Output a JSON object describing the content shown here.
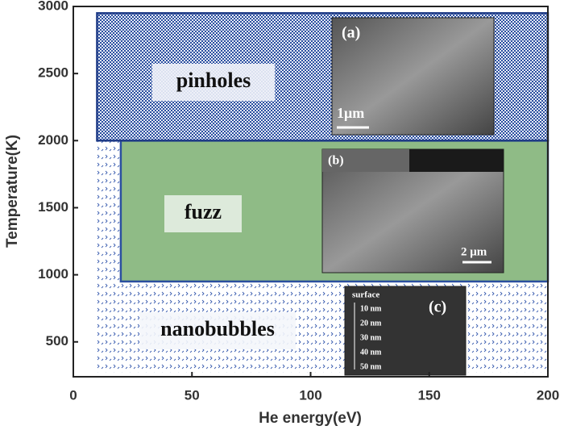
{
  "chart_data": {
    "type": "region",
    "xlabel": "He energy(eV)",
    "ylabel": "Temperature(K)",
    "xlim": [
      0,
      200
    ],
    "ylim": [
      240,
      3000
    ],
    "xticks": [
      0,
      50,
      100,
      150,
      200
    ],
    "yticks": [
      500,
      1000,
      1500,
      2000,
      2500,
      3000
    ],
    "regions": [
      {
        "name": "nanobubbles",
        "x": [
          10,
          200
        ],
        "y": [
          270,
          2000
        ],
        "color": "#2b4fa0"
      },
      {
        "name": "fuzz",
        "x": [
          20,
          200
        ],
        "y": [
          950,
          2000
        ],
        "color": "#8fbb86"
      },
      {
        "name": "pinholes",
        "x": [
          10,
          200
        ],
        "y": [
          2000,
          2950
        ],
        "color": "#2b4fa0"
      }
    ],
    "insets": [
      {
        "label": "(a)",
        "scale": "1μm"
      },
      {
        "label": "(b)",
        "scale": "2 μm"
      },
      {
        "label": "(c)",
        "texts": [
          "surface",
          "10 nm",
          "20 nm",
          "30 nm",
          "40 nm",
          "50 nm"
        ]
      }
    ]
  }
}
